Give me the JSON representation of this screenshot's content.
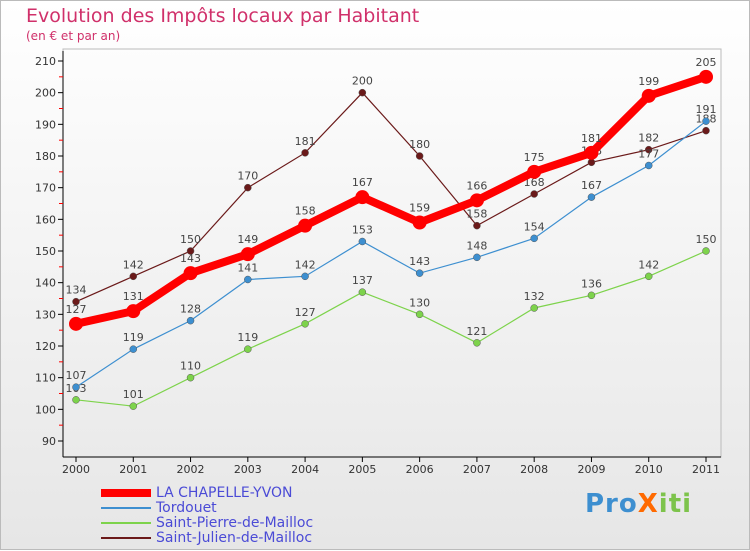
{
  "title": "Evolution des Impôts locaux par Habitant",
  "subtitle": "(en € et par an)",
  "logo": "ProXiti",
  "chart_data": {
    "type": "line",
    "title": "Evolution des Impôts locaux par Habitant",
    "ylabel": "(en € et par an)",
    "x": [
      2000,
      2001,
      2002,
      2003,
      2004,
      2005,
      2006,
      2007,
      2008,
      2009,
      2010,
      2011
    ],
    "ylim": [
      90,
      210
    ],
    "yticks": [
      90,
      100,
      110,
      120,
      130,
      140,
      150,
      160,
      170,
      180,
      190,
      200,
      210
    ],
    "grid": false,
    "legend": "bottom-left",
    "series": [
      {
        "name": "LA CHAPELLE-YVON",
        "color": "#ff0000",
        "values": [
          127,
          131,
          143,
          149,
          158,
          167,
          159,
          166,
          175,
          181,
          199,
          205
        ]
      },
      {
        "name": "Tordouet",
        "color": "#3d8fd0",
        "values": [
          107,
          119,
          128,
          141,
          142,
          153,
          143,
          148,
          154,
          167,
          177,
          191
        ]
      },
      {
        "name": "Saint-Pierre-de-Mailloc",
        "color": "#7dd34b",
        "values": [
          103,
          101,
          110,
          119,
          127,
          137,
          130,
          121,
          132,
          136,
          142,
          150
        ]
      },
      {
        "name": "Saint-Julien-de-Mailloc",
        "color": "#6b1a1a",
        "values": [
          134,
          142,
          150,
          170,
          181,
          200,
          180,
          158,
          168,
          178,
          182,
          188
        ]
      }
    ]
  }
}
